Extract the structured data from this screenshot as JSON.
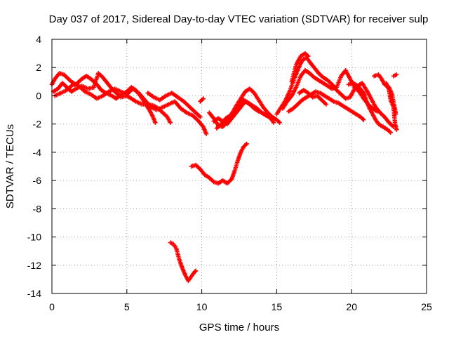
{
  "chart_data": {
    "type": "scatter",
    "title": "Day 037 of 2017, Sidereal Day-to-day VTEC variation (SDTVAR) for receiver sulp",
    "xlabel": "GPS time / hours",
    "ylabel": "SDTVAR / TECUs",
    "xlim": [
      0,
      25
    ],
    "ylim": [
      -14,
      4
    ],
    "x_ticks": [
      "0",
      "5",
      "10",
      "15",
      "20",
      "25"
    ],
    "y_ticks": [
      "4",
      "2",
      "0",
      "-2",
      "-4",
      "-6",
      "-8",
      "-10",
      "-12",
      "-14"
    ],
    "grid": true,
    "marker": "+",
    "color": "#ff0000",
    "series": [
      {
        "name": "track-a",
        "points": [
          [
            0.0,
            0.8
          ],
          [
            0.2,
            1.2
          ],
          [
            0.5,
            1.6
          ],
          [
            0.8,
            1.5
          ],
          [
            1.0,
            1.3
          ],
          [
            1.3,
            1.0
          ],
          [
            1.6,
            0.8
          ],
          [
            2.0,
            1.2
          ],
          [
            2.3,
            1.4
          ],
          [
            2.6,
            1.2
          ],
          [
            3.0,
            0.8
          ],
          [
            3.3,
            0.4
          ],
          [
            3.6,
            0.2
          ],
          [
            4.0,
            0.0
          ],
          [
            4.3,
            -0.2
          ],
          [
            4.6,
            0.1
          ],
          [
            5.0,
            0.3
          ],
          [
            5.3,
            0.6
          ],
          [
            5.6,
            0.4
          ],
          [
            5.9,
            0.0
          ],
          [
            6.2,
            -0.5
          ],
          [
            6.5,
            -1.0
          ],
          [
            6.7,
            -1.4
          ],
          [
            6.9,
            -1.9
          ]
        ]
      },
      {
        "name": "track-b",
        "points": [
          [
            0.1,
            0.3
          ],
          [
            0.4,
            0.5
          ],
          [
            0.7,
            0.9
          ],
          [
            1.0,
            0.6
          ],
          [
            1.3,
            0.3
          ],
          [
            1.6,
            0.5
          ],
          [
            2.0,
            0.7
          ],
          [
            2.4,
            0.5
          ],
          [
            2.8,
            0.6
          ],
          [
            3.1,
            1.6
          ],
          [
            3.4,
            1.3
          ],
          [
            3.7,
            0.9
          ],
          [
            4.0,
            0.5
          ],
          [
            4.3,
            0.2
          ],
          [
            4.6,
            -0.1
          ],
          [
            5.0,
            0.0
          ],
          [
            5.3,
            -0.2
          ],
          [
            5.6,
            -0.4
          ],
          [
            6.0,
            -0.6
          ],
          [
            6.4,
            -0.6
          ],
          [
            6.8,
            -0.7
          ],
          [
            7.1,
            -0.9
          ],
          [
            7.4,
            -1.2
          ],
          [
            7.7,
            -1.5
          ],
          [
            7.9,
            -1.9
          ]
        ]
      },
      {
        "name": "track-c",
        "points": [
          [
            0.2,
            0.0
          ],
          [
            0.6,
            0.2
          ],
          [
            1.0,
            0.4
          ],
          [
            1.4,
            0.8
          ],
          [
            1.8,
            0.7
          ],
          [
            2.2,
            0.3
          ],
          [
            2.6,
            0.1
          ],
          [
            3.0,
            -0.2
          ],
          [
            3.4,
            0.0
          ],
          [
            3.8,
            0.3
          ],
          [
            4.2,
            0.5
          ],
          [
            4.6,
            0.3
          ],
          [
            5.0,
            0.1
          ],
          [
            5.4,
            0.5
          ],
          [
            5.8,
            0.2
          ],
          [
            6.2,
            -0.3
          ],
          [
            6.6,
            -0.8
          ],
          [
            7.0,
            -1.0
          ],
          [
            7.4,
            -0.8
          ],
          [
            7.8,
            -0.6
          ],
          [
            8.2,
            -0.4
          ],
          [
            8.6,
            -0.9
          ],
          [
            9.0,
            -1.2
          ],
          [
            9.4,
            -1.4
          ],
          [
            9.8,
            -1.8
          ],
          [
            10.1,
            -2.2
          ],
          [
            10.3,
            -2.7
          ]
        ]
      },
      {
        "name": "track-d",
        "points": [
          [
            6.4,
            0.2
          ],
          [
            6.8,
            -0.1
          ],
          [
            7.2,
            -0.3
          ],
          [
            7.6,
            0.0
          ],
          [
            8.0,
            0.2
          ],
          [
            8.4,
            -0.1
          ],
          [
            8.8,
            -0.4
          ],
          [
            9.2,
            -0.8
          ],
          [
            9.6,
            -1.2
          ],
          [
            9.9,
            -1.5
          ]
        ]
      },
      {
        "name": "track-e",
        "points": [
          [
            9.9,
            -0.4
          ],
          [
            10.1,
            -0.2
          ]
        ]
      },
      {
        "name": "track-f",
        "points": [
          [
            10.8,
            -1.8
          ],
          [
            11.1,
            -1.6
          ],
          [
            11.4,
            -1.8
          ],
          [
            11.7,
            -2.0
          ],
          [
            12.0,
            -1.6
          ],
          [
            12.3,
            -1.2
          ],
          [
            12.6,
            -0.8
          ],
          [
            12.9,
            -0.4
          ],
          [
            13.2,
            -0.6
          ],
          [
            13.5,
            -0.9
          ],
          [
            13.8,
            -1.1
          ],
          [
            14.2,
            -1.3
          ],
          [
            14.6,
            -1.6
          ],
          [
            14.8,
            -1.9
          ]
        ]
      },
      {
        "name": "track-g",
        "points": [
          [
            10.5,
            -1.2
          ],
          [
            10.8,
            -1.6
          ],
          [
            11.1,
            -2.1
          ],
          [
            11.4,
            -2.2
          ],
          [
            11.7,
            -1.8
          ],
          [
            12.0,
            -1.3
          ],
          [
            12.3,
            -0.7
          ],
          [
            12.6,
            -0.2
          ],
          [
            12.9,
            0.3
          ],
          [
            13.2,
            0.5
          ],
          [
            13.5,
            0.2
          ],
          [
            13.8,
            -0.3
          ],
          [
            14.1,
            -0.8
          ],
          [
            14.4,
            -1.2
          ],
          [
            14.7,
            -1.5
          ],
          [
            15.0,
            -1.7
          ],
          [
            15.2,
            -1.9
          ]
        ]
      },
      {
        "name": "track-h",
        "points": [
          [
            11.0,
            -2.3
          ],
          [
            11.3,
            -2.0
          ],
          [
            11.6,
            -1.6
          ],
          [
            11.9,
            -1.4
          ],
          [
            12.2,
            -1.0
          ],
          [
            12.5,
            -0.6
          ],
          [
            12.8,
            -0.3
          ],
          [
            13.1,
            -0.5
          ],
          [
            13.4,
            -0.7
          ],
          [
            13.7,
            -0.9
          ],
          [
            14.0,
            -1.2
          ],
          [
            14.3,
            -1.4
          ]
        ]
      },
      {
        "name": "track-i",
        "points": [
          [
            15.0,
            -1.3
          ],
          [
            15.3,
            -0.8
          ],
          [
            15.6,
            -0.3
          ],
          [
            15.9,
            0.4
          ],
          [
            16.2,
            1.3
          ],
          [
            16.4,
            1.8
          ],
          [
            16.6,
            2.3
          ],
          [
            16.8,
            2.6
          ],
          [
            17.0,
            2.7
          ],
          [
            17.2,
            2.4
          ],
          [
            17.5,
            2.0
          ],
          [
            17.8,
            1.6
          ],
          [
            18.1,
            1.3
          ],
          [
            18.4,
            1.1
          ],
          [
            18.7,
            0.8
          ],
          [
            19.0,
            0.4
          ],
          [
            19.3,
            0.1
          ],
          [
            19.6,
            -0.2
          ],
          [
            19.9,
            -0.1
          ],
          [
            20.2,
            0.5
          ],
          [
            20.5,
            0.6
          ],
          [
            20.8,
            0.2
          ],
          [
            21.0,
            -0.4
          ],
          [
            21.2,
            -0.9
          ],
          [
            21.4,
            -1.3
          ],
          [
            21.6,
            -1.7
          ],
          [
            21.8,
            -2.0
          ],
          [
            22.1,
            -2.2
          ],
          [
            22.4,
            -2.4
          ],
          [
            22.6,
            -2.6
          ]
        ]
      },
      {
        "name": "track-j",
        "points": [
          [
            15.4,
            -0.9
          ],
          [
            15.7,
            -0.4
          ],
          [
            16.0,
            0.0
          ],
          [
            16.3,
            0.6
          ],
          [
            16.6,
            1.4
          ],
          [
            16.9,
            1.8
          ],
          [
            17.2,
            1.6
          ],
          [
            17.5,
            1.3
          ],
          [
            17.8,
            1.1
          ],
          [
            18.1,
            0.9
          ],
          [
            18.4,
            0.7
          ],
          [
            18.7,
            0.5
          ],
          [
            19.0,
            0.6
          ],
          [
            19.3,
            1.4
          ],
          [
            19.6,
            1.8
          ],
          [
            19.9,
            1.2
          ],
          [
            20.2,
            0.6
          ],
          [
            20.5,
            0.3
          ],
          [
            20.8,
            -0.2
          ],
          [
            21.1,
            -0.6
          ],
          [
            21.4,
            -0.9
          ],
          [
            21.7,
            -1.1
          ]
        ]
      },
      {
        "name": "track-k",
        "points": [
          [
            15.8,
            -1.1
          ],
          [
            16.1,
            -0.9
          ],
          [
            16.4,
            -0.6
          ],
          [
            16.7,
            -0.3
          ],
          [
            17.0,
            -0.1
          ],
          [
            17.3,
            0.1
          ],
          [
            17.6,
            0.3
          ],
          [
            17.9,
            0.2
          ],
          [
            18.2,
            0.0
          ],
          [
            18.5,
            -0.2
          ],
          [
            18.8,
            -0.4
          ],
          [
            19.1,
            -0.5
          ],
          [
            19.4,
            -0.7
          ],
          [
            19.7,
            -0.9
          ],
          [
            20.0,
            -1.1
          ],
          [
            20.3,
            -1.3
          ],
          [
            20.6,
            -1.5
          ],
          [
            20.8,
            -1.7
          ]
        ]
      },
      {
        "name": "track-l",
        "points": [
          [
            16.0,
            1.0
          ],
          [
            16.3,
            2.2
          ],
          [
            16.6,
            2.8
          ],
          [
            16.9,
            3.0
          ],
          [
            17.1,
            2.8
          ]
        ]
      },
      {
        "name": "track-m",
        "points": [
          [
            16.5,
            0.2
          ],
          [
            16.8,
            0.4
          ],
          [
            17.1,
            0.2
          ],
          [
            17.4,
            -0.1
          ],
          [
            17.7,
            0.0
          ],
          [
            18.0,
            -0.3
          ],
          [
            18.3,
            -0.6
          ]
        ]
      },
      {
        "name": "track-n",
        "points": [
          [
            19.8,
            0.8
          ],
          [
            20.1,
            0.9
          ],
          [
            20.4,
            0.7
          ],
          [
            20.7,
            0.9
          ],
          [
            21.0,
            0.4
          ],
          [
            21.3,
            -0.2
          ],
          [
            21.6,
            -0.8
          ],
          [
            21.9,
            -1.2
          ],
          [
            22.2,
            -1.5
          ],
          [
            22.5,
            -1.9
          ],
          [
            22.8,
            -2.2
          ]
        ]
      },
      {
        "name": "track-o",
        "points": [
          [
            21.5,
            1.4
          ],
          [
            21.8,
            1.5
          ],
          [
            22.0,
            1.2
          ],
          [
            22.2,
            0.8
          ],
          [
            22.5,
            0.6
          ],
          [
            22.7,
            0.1
          ],
          [
            22.8,
            -0.5
          ],
          [
            22.9,
            -1.0
          ],
          [
            22.95,
            -1.3
          ]
        ]
      },
      {
        "name": "track-p",
        "points": [
          [
            22.3,
            0.9
          ],
          [
            22.5,
            0.4
          ],
          [
            22.6,
            -0.3
          ],
          [
            22.8,
            -0.8
          ],
          [
            22.9,
            -2.0
          ],
          [
            23.0,
            -2.4
          ]
        ]
      },
      {
        "name": "track-q",
        "points": [
          [
            22.8,
            1.4
          ],
          [
            23.0,
            1.5
          ]
        ]
      },
      {
        "name": "track-r",
        "points": [
          [
            9.3,
            -5.0
          ],
          [
            9.6,
            -4.9
          ],
          [
            9.9,
            -5.2
          ],
          [
            10.2,
            -5.6
          ],
          [
            10.5,
            -5.8
          ],
          [
            10.8,
            -6.1
          ],
          [
            11.1,
            -6.2
          ],
          [
            11.4,
            -6.0
          ],
          [
            11.7,
            -6.2
          ],
          [
            12.0,
            -5.9
          ],
          [
            12.2,
            -5.3
          ],
          [
            12.4,
            -4.6
          ],
          [
            12.6,
            -4.0
          ],
          [
            12.8,
            -3.6
          ],
          [
            13.0,
            -3.4
          ]
        ]
      },
      {
        "name": "track-s",
        "points": [
          [
            7.9,
            -10.4
          ],
          [
            8.1,
            -10.5
          ],
          [
            8.3,
            -10.8
          ],
          [
            8.5,
            -11.6
          ],
          [
            8.7,
            -12.2
          ],
          [
            8.9,
            -12.7
          ],
          [
            9.1,
            -13.1
          ],
          [
            9.3,
            -12.8
          ],
          [
            9.5,
            -12.5
          ],
          [
            9.6,
            -12.4
          ]
        ]
      }
    ]
  }
}
